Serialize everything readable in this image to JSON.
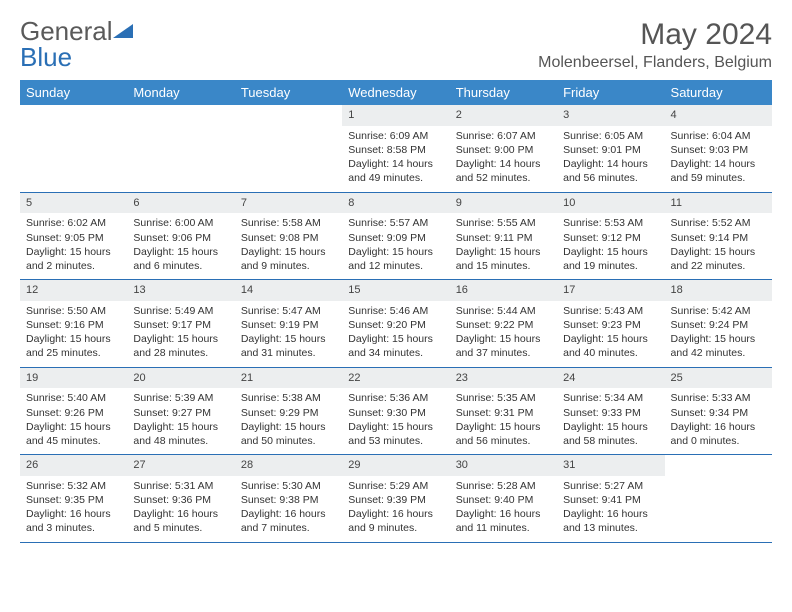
{
  "logo": {
    "gray": "General",
    "blue": "Blue"
  },
  "title": "May 2024",
  "location": "Molenbeersel, Flanders, Belgium",
  "colors": {
    "header_bg": "#3a87c8",
    "header_text": "#ffffff",
    "daynum_bg": "#eceeef",
    "border": "#2a6fb5",
    "logo_gray": "#5a5a5a",
    "logo_blue": "#2a6fb5"
  },
  "weekdays": [
    "Sunday",
    "Monday",
    "Tuesday",
    "Wednesday",
    "Thursday",
    "Friday",
    "Saturday"
  ],
  "weeks": [
    [
      null,
      null,
      null,
      {
        "n": "1",
        "sr": "6:09 AM",
        "ss": "8:58 PM",
        "dl": "14 hours and 49 minutes."
      },
      {
        "n": "2",
        "sr": "6:07 AM",
        "ss": "9:00 PM",
        "dl": "14 hours and 52 minutes."
      },
      {
        "n": "3",
        "sr": "6:05 AM",
        "ss": "9:01 PM",
        "dl": "14 hours and 56 minutes."
      },
      {
        "n": "4",
        "sr": "6:04 AM",
        "ss": "9:03 PM",
        "dl": "14 hours and 59 minutes."
      }
    ],
    [
      {
        "n": "5",
        "sr": "6:02 AM",
        "ss": "9:05 PM",
        "dl": "15 hours and 2 minutes."
      },
      {
        "n": "6",
        "sr": "6:00 AM",
        "ss": "9:06 PM",
        "dl": "15 hours and 6 minutes."
      },
      {
        "n": "7",
        "sr": "5:58 AM",
        "ss": "9:08 PM",
        "dl": "15 hours and 9 minutes."
      },
      {
        "n": "8",
        "sr": "5:57 AM",
        "ss": "9:09 PM",
        "dl": "15 hours and 12 minutes."
      },
      {
        "n": "9",
        "sr": "5:55 AM",
        "ss": "9:11 PM",
        "dl": "15 hours and 15 minutes."
      },
      {
        "n": "10",
        "sr": "5:53 AM",
        "ss": "9:12 PM",
        "dl": "15 hours and 19 minutes."
      },
      {
        "n": "11",
        "sr": "5:52 AM",
        "ss": "9:14 PM",
        "dl": "15 hours and 22 minutes."
      }
    ],
    [
      {
        "n": "12",
        "sr": "5:50 AM",
        "ss": "9:16 PM",
        "dl": "15 hours and 25 minutes."
      },
      {
        "n": "13",
        "sr": "5:49 AM",
        "ss": "9:17 PM",
        "dl": "15 hours and 28 minutes."
      },
      {
        "n": "14",
        "sr": "5:47 AM",
        "ss": "9:19 PM",
        "dl": "15 hours and 31 minutes."
      },
      {
        "n": "15",
        "sr": "5:46 AM",
        "ss": "9:20 PM",
        "dl": "15 hours and 34 minutes."
      },
      {
        "n": "16",
        "sr": "5:44 AM",
        "ss": "9:22 PM",
        "dl": "15 hours and 37 minutes."
      },
      {
        "n": "17",
        "sr": "5:43 AM",
        "ss": "9:23 PM",
        "dl": "15 hours and 40 minutes."
      },
      {
        "n": "18",
        "sr": "5:42 AM",
        "ss": "9:24 PM",
        "dl": "15 hours and 42 minutes."
      }
    ],
    [
      {
        "n": "19",
        "sr": "5:40 AM",
        "ss": "9:26 PM",
        "dl": "15 hours and 45 minutes."
      },
      {
        "n": "20",
        "sr": "5:39 AM",
        "ss": "9:27 PM",
        "dl": "15 hours and 48 minutes."
      },
      {
        "n": "21",
        "sr": "5:38 AM",
        "ss": "9:29 PM",
        "dl": "15 hours and 50 minutes."
      },
      {
        "n": "22",
        "sr": "5:36 AM",
        "ss": "9:30 PM",
        "dl": "15 hours and 53 minutes."
      },
      {
        "n": "23",
        "sr": "5:35 AM",
        "ss": "9:31 PM",
        "dl": "15 hours and 56 minutes."
      },
      {
        "n": "24",
        "sr": "5:34 AM",
        "ss": "9:33 PM",
        "dl": "15 hours and 58 minutes."
      },
      {
        "n": "25",
        "sr": "5:33 AM",
        "ss": "9:34 PM",
        "dl": "16 hours and 0 minutes."
      }
    ],
    [
      {
        "n": "26",
        "sr": "5:32 AM",
        "ss": "9:35 PM",
        "dl": "16 hours and 3 minutes."
      },
      {
        "n": "27",
        "sr": "5:31 AM",
        "ss": "9:36 PM",
        "dl": "16 hours and 5 minutes."
      },
      {
        "n": "28",
        "sr": "5:30 AM",
        "ss": "9:38 PM",
        "dl": "16 hours and 7 minutes."
      },
      {
        "n": "29",
        "sr": "5:29 AM",
        "ss": "9:39 PM",
        "dl": "16 hours and 9 minutes."
      },
      {
        "n": "30",
        "sr": "5:28 AM",
        "ss": "9:40 PM",
        "dl": "16 hours and 11 minutes."
      },
      {
        "n": "31",
        "sr": "5:27 AM",
        "ss": "9:41 PM",
        "dl": "16 hours and 13 minutes."
      },
      null
    ]
  ],
  "labels": {
    "sunrise": "Sunrise:",
    "sunset": "Sunset:",
    "daylight": "Daylight:"
  }
}
